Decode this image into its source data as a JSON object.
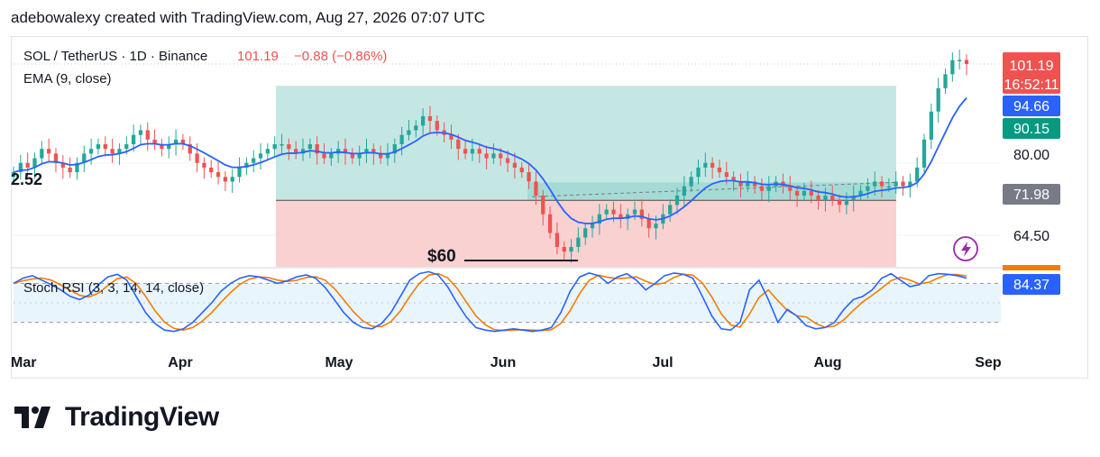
{
  "header": {
    "caption": "adebowalexy created with TradingView.com, Aug 27, 2026 07:07 UTC"
  },
  "legend": {
    "symbol": "SOL / TetherUS · 1D · Binance",
    "last": "101.19",
    "change": "−0.88 (−0.86%)",
    "ema_label": "EMA (9, close)",
    "stoch_label": "Stoch RSI (3, 3, 14, 14, close)"
  },
  "annotations": {
    "left_value": "2.52",
    "support_label": "$60"
  },
  "price_tags": {
    "last": "101.19",
    "countdown": "16:52:11",
    "ema": "94.66",
    "target": "90.15",
    "level_80": "80.00",
    "entry": "71.98",
    "level_64": "64.50",
    "rsi_value": "84.37"
  },
  "brand": {
    "name": "TradingView",
    "logo_icon": "tradingview-logo-icon"
  },
  "colors": {
    "bull": "#26a69a",
    "bear": "#ef5350",
    "ema": "#2962ff",
    "stoch_k": "#2962ff",
    "stoch_d": "#f57c00",
    "profit_zone": "#b2dfdb",
    "loss_zone": "#f8c9c9",
    "stoch_band": "#e3f2fd"
  },
  "chart_data": {
    "type": "candlestick",
    "symbol": "SOL / TetherUS",
    "timeframe": "1D",
    "exchange": "Binance",
    "x_axis_labels": [
      "Mar",
      "Apr",
      "May",
      "Jun",
      "Jul",
      "Aug",
      "Sep"
    ],
    "y_axis_labels": [
      101.19,
      94.66,
      90.15,
      80.0,
      71.98,
      64.5
    ],
    "closes": [
      78,
      80,
      79,
      81,
      83,
      82,
      80,
      79,
      78,
      80,
      82,
      83,
      84,
      83,
      82,
      83,
      84,
      86,
      87,
      85,
      84,
      83,
      84,
      85,
      84,
      82,
      80,
      79,
      78,
      77,
      76,
      77,
      79,
      80,
      81,
      82,
      83,
      84,
      84,
      83,
      82,
      83,
      84,
      82,
      81,
      82,
      83,
      82,
      81,
      82,
      83,
      82,
      81,
      82,
      84,
      86,
      87,
      88,
      90,
      89,
      87,
      86,
      85,
      83,
      82,
      83,
      82,
      81,
      82,
      81,
      80,
      79,
      78,
      76,
      73,
      69,
      65,
      62,
      61,
      62,
      64,
      66,
      67,
      69,
      70,
      69,
      68,
      69,
      70,
      68,
      66,
      67,
      69,
      71,
      73,
      75,
      77,
      79,
      80,
      79,
      78,
      77,
      76,
      75,
      76,
      75,
      74,
      75,
      76,
      75,
      74,
      73,
      74,
      73,
      72,
      73,
      72,
      71,
      72,
      73,
      74,
      75,
      76,
      75,
      75,
      76,
      75,
      76,
      79,
      85,
      91,
      96,
      99,
      102,
      102.07,
      101.19
    ],
    "ema": {
      "name": "EMA (9, close)",
      "last": 94.66
    },
    "position_tool": {
      "entry": 71.98,
      "target": 90.15,
      "stop": 60
    },
    "support": {
      "label": "$60",
      "value": 60
    },
    "stoch_rsi": {
      "name": "Stoch RSI (3, 3, 14, 14, close)",
      "last": 84.37,
      "k": [
        80,
        88,
        92,
        85,
        78,
        70,
        60,
        55,
        62,
        78,
        90,
        94,
        85,
        60,
        35,
        18,
        8,
        6,
        10,
        20,
        35,
        50,
        68,
        80,
        88,
        92,
        90,
        85,
        80,
        84,
        90,
        93,
        88,
        74,
        55,
        35,
        20,
        12,
        10,
        18,
        35,
        60,
        85,
        95,
        98,
        93,
        75,
        50,
        28,
        12,
        8,
        6,
        8,
        10,
        8,
        6,
        8,
        12,
        35,
        68,
        90,
        96,
        92,
        80,
        90,
        95,
        85,
        70,
        80,
        92,
        96,
        94,
        88,
        60,
        30,
        10,
        8,
        20,
        70,
        85,
        55,
        20,
        40,
        30,
        15,
        10,
        12,
        20,
        40,
        55,
        60,
        70,
        88,
        95,
        85,
        75,
        78,
        92,
        95,
        94,
        92,
        88
      ]
    }
  }
}
